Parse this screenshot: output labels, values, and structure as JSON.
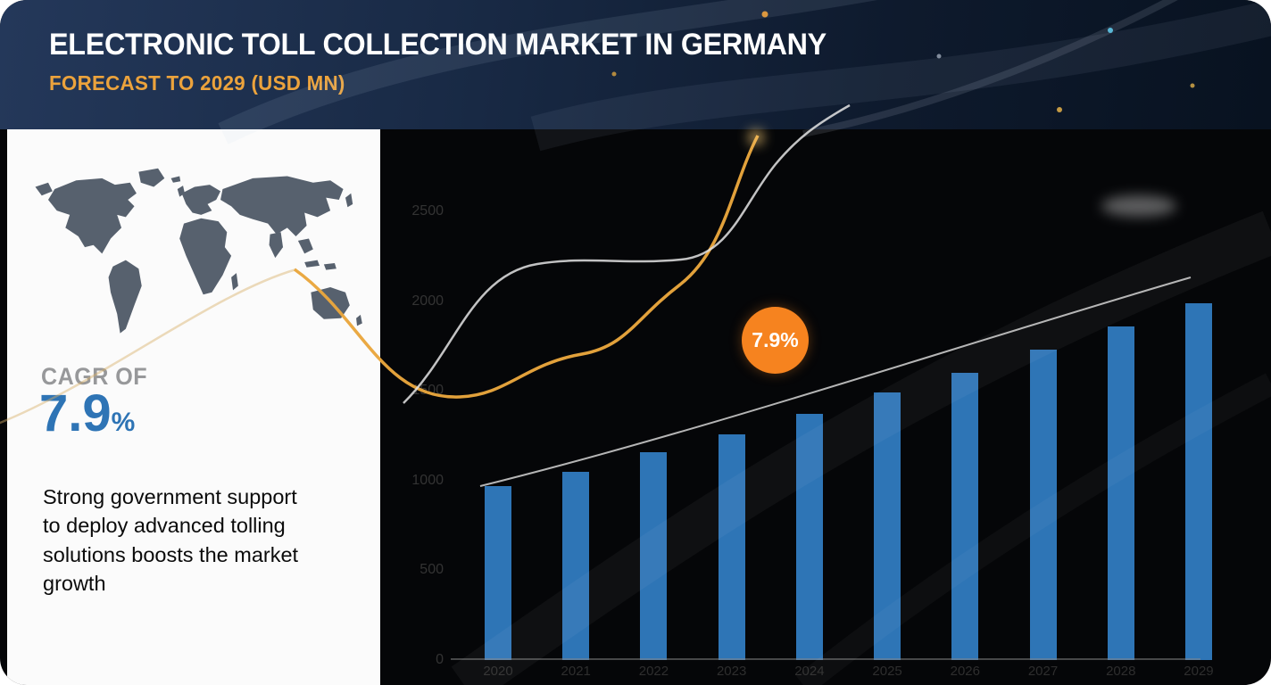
{
  "header": {
    "title": "ELECTRONIC TOLL COLLECTION MARKET IN GERMANY",
    "subtitle": "FORECAST TO 2029 (USD MN)"
  },
  "left_panel": {
    "cagr_label": "CAGR OF",
    "cagr_value": "7.9",
    "cagr_unit": "%",
    "description_lines": [
      "Strong government support",
      "to deploy advanced tolling",
      "solutions boosts the market",
      "growth"
    ]
  },
  "chart_data": {
    "type": "bar",
    "title": "",
    "categories": [
      "2020",
      "2021",
      "2022",
      "2023",
      "2024",
      "2025",
      "2026",
      "2027",
      "2028",
      "2029"
    ],
    "values": [
      970,
      1050,
      1160,
      1260,
      1370,
      1490,
      1600,
      1730,
      1860,
      1990
    ],
    "xlabel": "",
    "ylabel": "",
    "ylim": [
      0,
      2500
    ],
    "yticks": [
      0,
      500,
      1000,
      1500,
      2000,
      2500
    ],
    "grid": false,
    "legend": false,
    "bar_color": "#2e75b6",
    "trendline": true,
    "annotation": {
      "label": "7.9%",
      "color": "#f6831f"
    }
  },
  "colors": {
    "header_bg": "#16263f",
    "subtitle_gold": "#eca33c",
    "cagr_blue": "#2e74b5",
    "panel_bg": "#fbfbfb",
    "map_gray": "#57616e",
    "chart_bg": "#050608",
    "gold_curve": "#e9a63d",
    "trend_gray": "#c9c9c9"
  }
}
